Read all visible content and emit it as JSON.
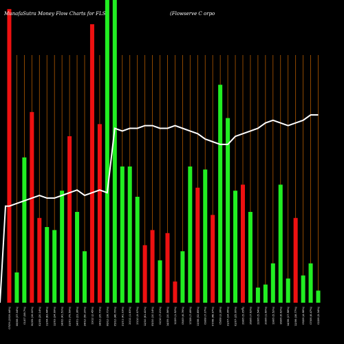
{
  "chart_data": {
    "type": "bar",
    "title_left": "MunafaSutra  Money Flow  Charts for FLS",
    "title_right": "(Flowserve    C                         orpo",
    "colors": {
      "background": "#000000",
      "up": "#22ee22",
      "down": "#ee1111",
      "grid": "#b35a00",
      "line": "#ffffff"
    },
    "grid": true,
    "ylim": [
      0,
      100
    ],
    "categories": [
      "07/09 (2019.44%)",
      "08/08 (37.04%)",
      "01/07 (58.7%)",
      "30/05 (16.00%)",
      "02/05 (20.14%)",
      "11/04 (83.44%)",
      "12/03 (24.99%)",
      "14/02 (41.51%)",
      "22/01 (79.59%)",
      "14/01 (23.36%)",
      "24/12 (50.20%)",
      "19/12 (2.45%)",
      "14/12 (35.73%)",
      "06/12 (18.71%)",
      "05/12 (46.70%)",
      "21/11 (41.03%)",
      "20/11 (1.83%)",
      "23/10 (9.97%)",
      "12/10 (61.41%)",
      "05/10 (10.14%)",
      "02/10 (7.21%)",
      "14/09 (10.56%)",
      "12/09 (1.52%)",
      "05/09 (6.76%)",
      "17/08 (7.49%)",
      "13/08 (32.85%)",
      "09/08 (7.07%)",
      "07/08 (48.97%)",
      "05/08 (3.28%)",
      "31/07 (14.06%)",
      "02/07 (25.00%)",
      "29/06 (5.05%)",
      "26/06 (7.62%)",
      "22/06 (5.54%)",
      "20/06 (1.60%)",
      "19/06 (5.52%)",
      "16/06 (6.62%)",
      "14/06 (17.58%)",
      "12/06 (18.77%)",
      "09/06 (4.98%)",
      "07/06 (8.47%)",
      "02/06 (5.34%)"
    ],
    "colors_seq": [
      "down",
      "green",
      "green",
      "down",
      "down",
      "green",
      "green",
      "green",
      "down",
      "green",
      "green",
      "down",
      "down",
      "green",
      "green",
      "green",
      "green",
      "green",
      "down",
      "down",
      "green",
      "down",
      "down",
      "green",
      "green",
      "down",
      "green",
      "down",
      "green",
      "green",
      "green",
      "down",
      "green",
      "green",
      "green",
      "green",
      "green",
      "green",
      "down",
      "green",
      "green",
      "green"
    ],
    "values": [
      97,
      10,
      48,
      63,
      28,
      25,
      24,
      37,
      55,
      30,
      17,
      92,
      59,
      100,
      100,
      45,
      45,
      35,
      19,
      24,
      14,
      23,
      7,
      17,
      45,
      38,
      44,
      29,
      72,
      61,
      37,
      39,
      30,
      5,
      6,
      13,
      39,
      8,
      28,
      9,
      13,
      4
    ],
    "line_values": [
      36,
      37,
      38,
      39,
      40,
      39,
      39,
      40,
      41,
      42,
      40,
      41,
      42,
      41,
      65,
      64,
      65,
      65,
      66,
      66,
      65,
      65,
      66,
      65,
      64,
      63,
      61,
      60,
      59,
      59,
      62,
      63,
      64,
      65,
      67,
      68,
      67,
      66,
      67,
      68,
      70,
      70
    ],
    "mid_label": "c"
  }
}
